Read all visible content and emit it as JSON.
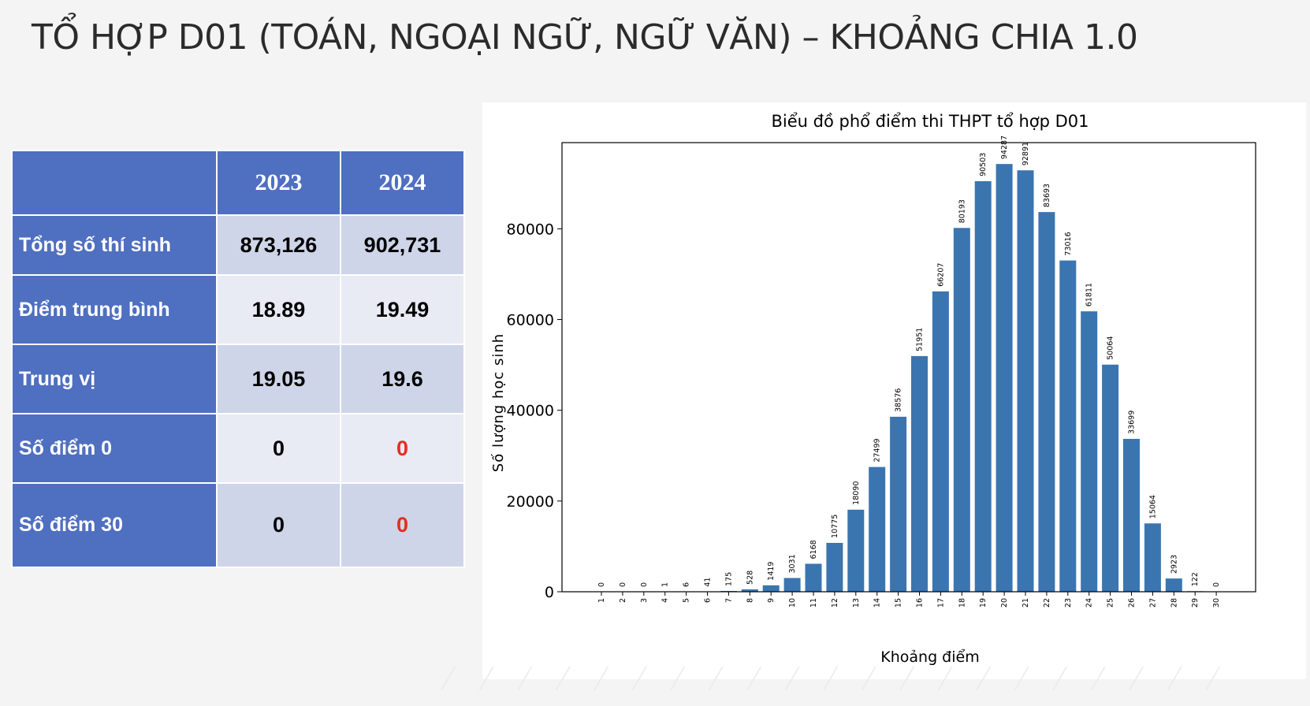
{
  "title": "TỔ HỢP D01 (TOÁN, NGOẠI NGỮ, NGỮ VĂN) – KHOẢNG CHIA 1.0",
  "table": {
    "headers": [
      "",
      "2023",
      "2024"
    ],
    "rows": [
      {
        "label": "Tổng số thí sinh",
        "v2023": "873,126",
        "v2024": "902,731"
      },
      {
        "label": "Điểm trung bình",
        "v2023": "18.89",
        "v2024": "19.49"
      },
      {
        "label": "Trung vị",
        "v2023": "19.05",
        "v2024": "19.6"
      },
      {
        "label": "Số điểm 0",
        "v2023": "0",
        "v2024": "0"
      },
      {
        "label": "Số điểm 30",
        "v2023": "0",
        "v2024": "0"
      }
    ]
  },
  "colors": {
    "header_bg": "#4f6fc0",
    "bar": "#3a75b0",
    "highlight": "#e03020"
  },
  "chart_data": {
    "type": "bar",
    "title": "Biểu đồ phổ điểm thi THPT tổ hợp D01",
    "xlabel": "Khoảng điểm",
    "ylabel": "Số lượng học sinh",
    "categories": [
      "1",
      "2",
      "3",
      "4",
      "5",
      "6",
      "7",
      "8",
      "9",
      "10",
      "11",
      "12",
      "13",
      "14",
      "15",
      "16",
      "17",
      "18",
      "19",
      "20",
      "21",
      "22",
      "23",
      "24",
      "25",
      "26",
      "27",
      "28",
      "29",
      "30"
    ],
    "values": [
      0,
      0,
      0,
      1,
      6,
      41,
      175,
      528,
      1419,
      3031,
      6168,
      10775,
      18090,
      27499,
      38576,
      51951,
      66207,
      80193,
      90503,
      94287,
      92891,
      83693,
      73016,
      61811,
      50064,
      33699,
      15064,
      2923,
      122,
      0
    ],
    "yticks": [
      0,
      20000,
      40000,
      60000,
      80000
    ],
    "ylim": [
      0,
      99000
    ],
    "grid": false
  }
}
